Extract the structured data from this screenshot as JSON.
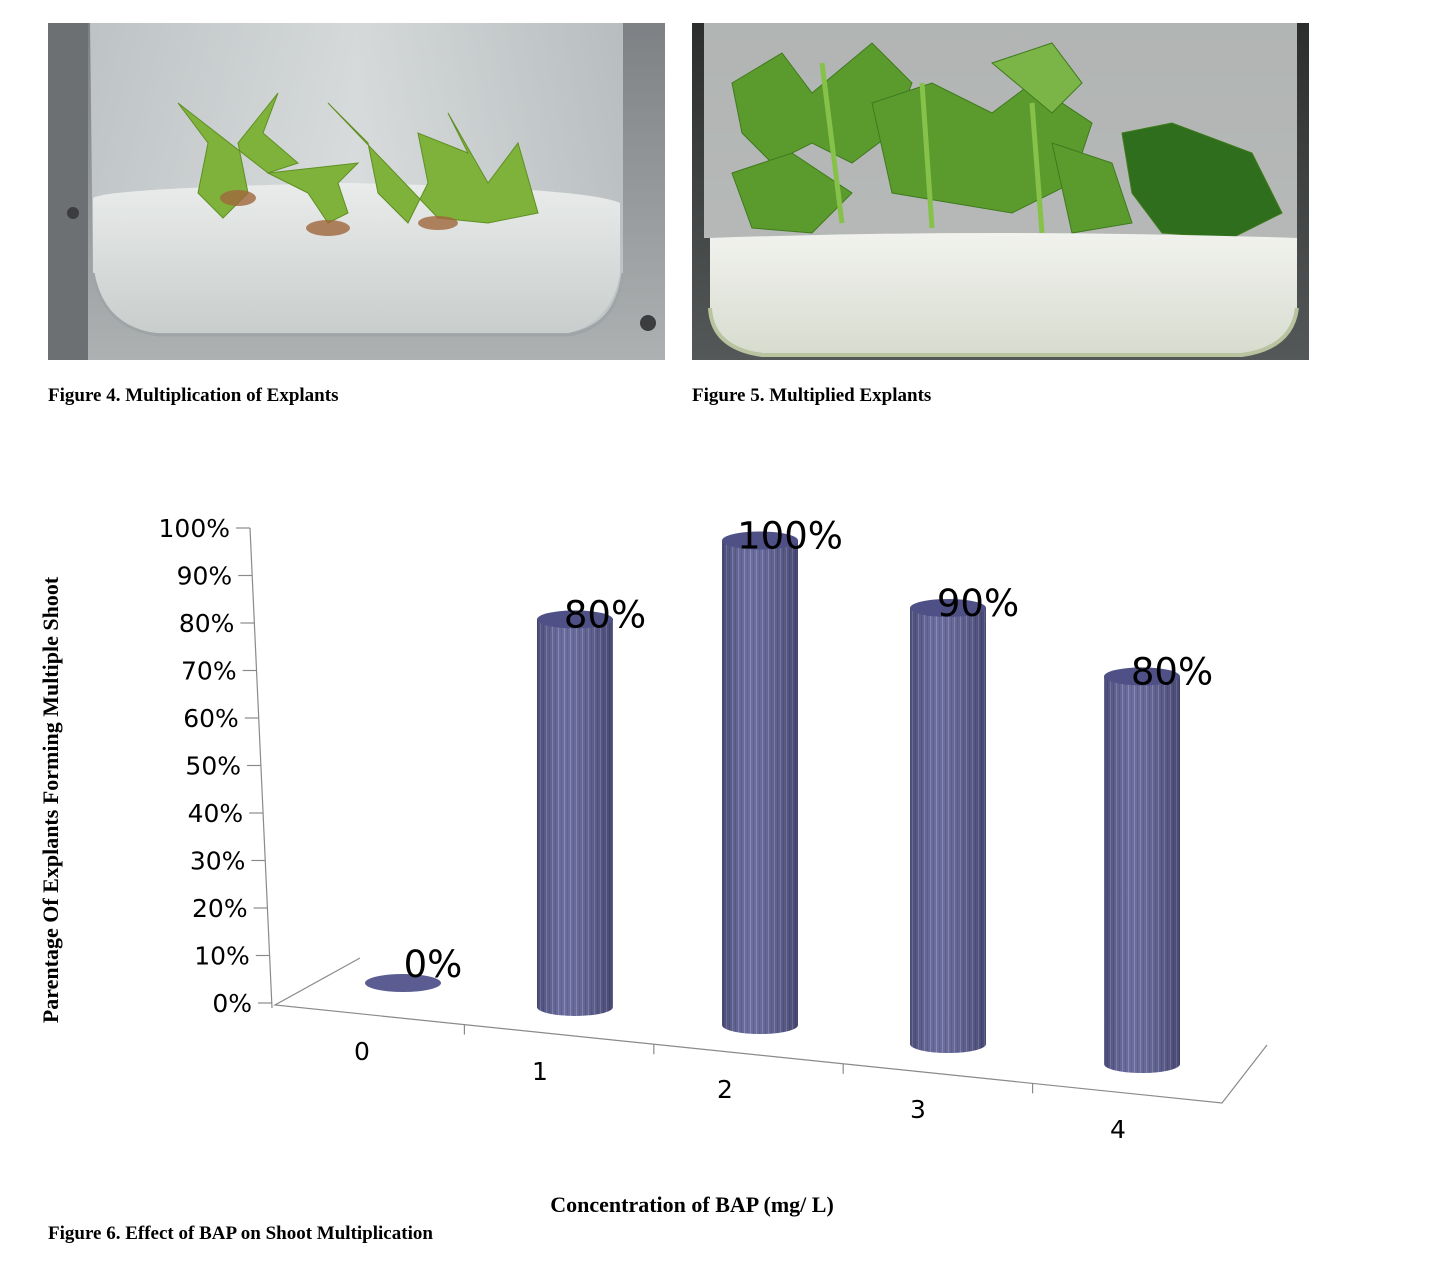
{
  "figures": [
    {
      "caption": "Figure 4. Multiplication of Explants",
      "image": "photo-jar-small-shoots"
    },
    {
      "caption": "Figure 5. Multiplied Explants",
      "image": "photo-jar-leafy-shoots"
    }
  ],
  "chart_caption": "Figure 6. Effect of BAP on Shoot Multiplication",
  "chart_data": {
    "type": "bar",
    "style": "3d-cylinder",
    "categories": [
      "0",
      "1",
      "2",
      "3",
      "4"
    ],
    "values": [
      0,
      80,
      100,
      90,
      80
    ],
    "data_labels": [
      "0%",
      "80%",
      "100%",
      "90%",
      "80%"
    ],
    "xlabel": "Concentration of BAP (mg/ L)",
    "ylabel": "Parentage Of Explants Forming Multiple Shoot",
    "yticks": [
      "0%",
      "10%",
      "20%",
      "30%",
      "40%",
      "50%",
      "60%",
      "70%",
      "80%",
      "90%",
      "100%"
    ],
    "ylim": [
      0,
      100
    ],
    "bar_color": "#5b5d92",
    "legend": "none",
    "grid": false
  }
}
